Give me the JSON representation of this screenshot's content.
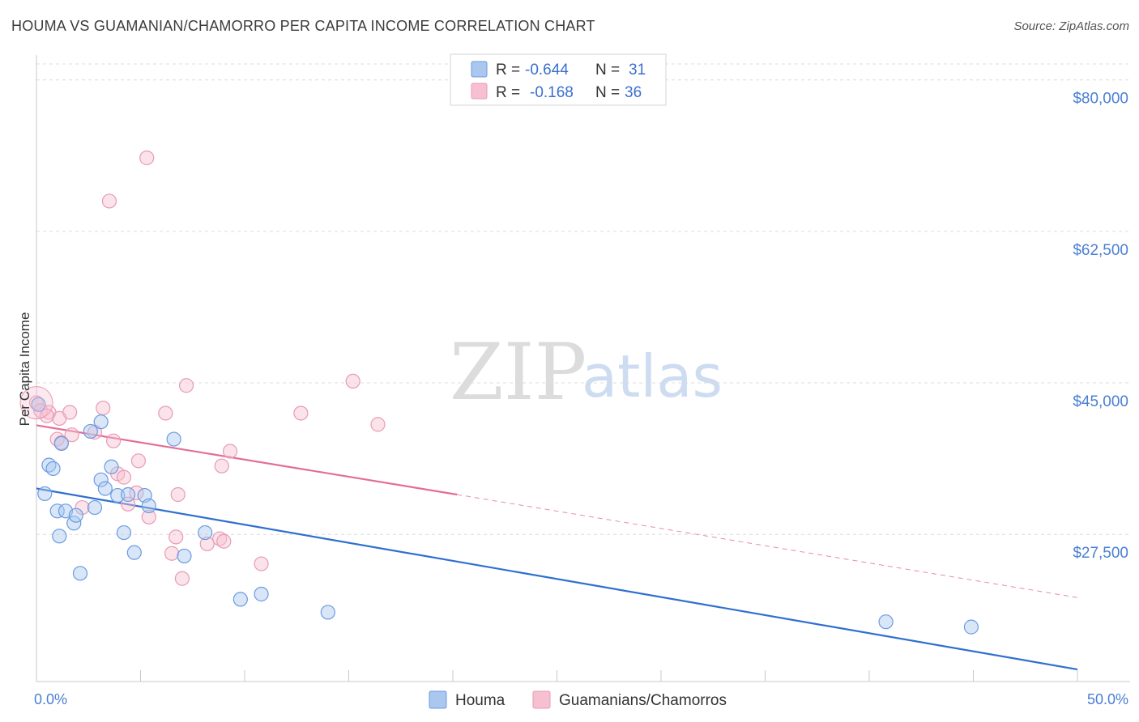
{
  "title": "HOUMA VS GUAMANIAN/CHAMORRO PER CAPITA INCOME CORRELATION CHART",
  "source": "Source: ZipAtlas.com",
  "watermark": {
    "left": "ZIP",
    "right": "atlas"
  },
  "colors": {
    "houma_fill": "#a9c7ef",
    "houma_stroke": "#6b9be0",
    "houma_line": "#2f6fd0",
    "guam_fill": "#f6c0d1",
    "guam_stroke": "#e99ab5",
    "guam_line": "#e46d95",
    "grid": "#dcdcdc",
    "axis_text": "#4a7fd4"
  },
  "legend": {
    "rows": [
      {
        "r_label": "R =",
        "r_value": "-0.644",
        "n_label": "N =",
        "n_value": "31"
      },
      {
        "r_label": "R =",
        "r_value": "-0.168",
        "n_label": "N =",
        "n_value": "36"
      }
    ]
  },
  "chart_data": {
    "type": "scatter",
    "title": "HOUMA VS GUAMANIAN/CHAMORRO PER CAPITA INCOME CORRELATION CHART",
    "ylabel": "Per Capita Income",
    "xlabel": "",
    "xlim": [
      0,
      50
    ],
    "ylim": [
      10500,
      82500
    ],
    "x_tick_labels": [
      {
        "value": 0,
        "label": "0.0%"
      },
      {
        "value": 50,
        "label": "50.0%"
      }
    ],
    "x_minor_ticks": [
      5,
      10,
      15,
      20,
      25,
      30,
      35,
      40,
      45,
      50
    ],
    "y_ticks": [
      {
        "value": 80000,
        "label": "$80,000"
      },
      {
        "value": 62500,
        "label": "$62,500"
      },
      {
        "value": 45000,
        "label": "$45,000"
      },
      {
        "value": 27500,
        "label": "$27,500"
      }
    ],
    "series": [
      {
        "name": "Houma",
        "points": [
          [
            0.1,
            42500
          ],
          [
            0.4,
            32200
          ],
          [
            0.6,
            35500
          ],
          [
            0.8,
            35100
          ],
          [
            1.0,
            30200
          ],
          [
            1.1,
            27300
          ],
          [
            1.2,
            38000
          ],
          [
            1.4,
            30200
          ],
          [
            1.8,
            28800
          ],
          [
            1.9,
            29700
          ],
          [
            2.1,
            23000
          ],
          [
            2.6,
            39400
          ],
          [
            2.8,
            30600
          ],
          [
            3.1,
            40500
          ],
          [
            3.1,
            33800
          ],
          [
            3.3,
            32800
          ],
          [
            3.6,
            35300
          ],
          [
            3.9,
            32000
          ],
          [
            4.2,
            27700
          ],
          [
            4.4,
            32100
          ],
          [
            4.7,
            25400
          ],
          [
            5.2,
            32000
          ],
          [
            5.4,
            30800
          ],
          [
            6.6,
            38500
          ],
          [
            7.1,
            25000
          ],
          [
            8.1,
            27700
          ],
          [
            9.8,
            20000
          ],
          [
            10.8,
            20600
          ],
          [
            14.0,
            18500
          ],
          [
            40.8,
            17400
          ],
          [
            44.9,
            16800
          ]
        ],
        "trend": {
          "x": [
            0,
            50
          ],
          "y": [
            32800,
            11900
          ]
        }
      },
      {
        "name": "Guamanians/Chamorros",
        "points": [
          [
            0.0,
            42700
          ],
          [
            0.2,
            41800
          ],
          [
            0.6,
            41600
          ],
          [
            1.0,
            38500
          ],
          [
            1.2,
            38100
          ],
          [
            1.6,
            41600
          ],
          [
            1.7,
            39000
          ],
          [
            2.2,
            30600
          ],
          [
            2.8,
            39300
          ],
          [
            3.2,
            42100
          ],
          [
            3.5,
            66000
          ],
          [
            3.7,
            38300
          ],
          [
            3.9,
            34500
          ],
          [
            4.2,
            34100
          ],
          [
            4.4,
            31000
          ],
          [
            4.8,
            32300
          ],
          [
            4.9,
            36000
          ],
          [
            5.3,
            71000
          ],
          [
            5.4,
            29500
          ],
          [
            6.2,
            41500
          ],
          [
            6.5,
            25300
          ],
          [
            6.7,
            27200
          ],
          [
            7.2,
            44700
          ],
          [
            7.0,
            22400
          ],
          [
            6.8,
            32100
          ],
          [
            8.2,
            26400
          ],
          [
            8.8,
            27000
          ],
          [
            8.9,
            35400
          ],
          [
            9.3,
            37100
          ],
          [
            9.0,
            26700
          ],
          [
            10.8,
            24100
          ],
          [
            12.7,
            41500
          ],
          [
            15.2,
            45200
          ],
          [
            16.4,
            40200
          ],
          [
            1.1,
            40900
          ],
          [
            0.5,
            41200
          ]
        ],
        "trend": {
          "x": [
            0,
            20.2
          ],
          "y": [
            40100,
            32100
          ]
        },
        "trend_dashed": {
          "x": [
            20.2,
            50
          ],
          "y": [
            32100,
            20200
          ]
        }
      }
    ],
    "legend_entries": [
      "Houma",
      "Guamanians/Chamorros"
    ]
  }
}
